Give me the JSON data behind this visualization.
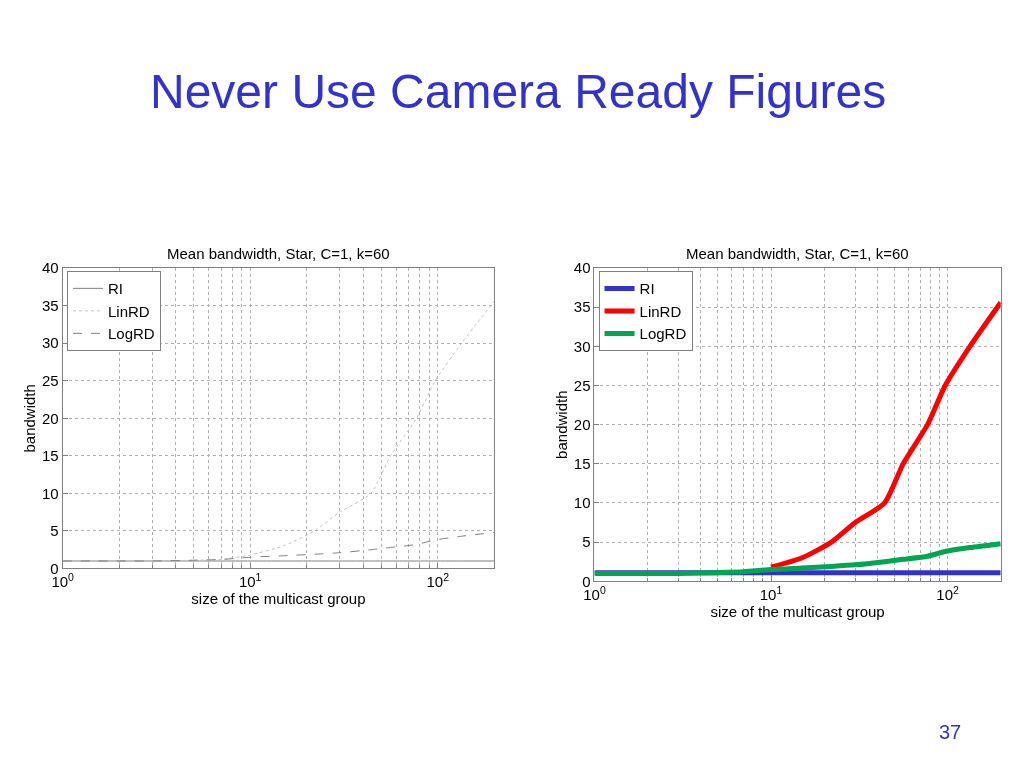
{
  "chart_data": [
    {
      "type": "line",
      "title": "Mean bandwidth, Star, C=1, k=60",
      "xlabel": "size of the multicast group",
      "ylabel": "bandwidth",
      "annotations": [
        "Never Use Camera Ready Figures",
        "37"
      ],
      "x": [
        1,
        2,
        3,
        5,
        7,
        10,
        15,
        22,
        30,
        44,
        56,
        77,
        97,
        134,
        200
      ],
      "series": [
        {
          "name": "RI",
          "color": "#808080",
          "line_style": "solid",
          "values": [
            1,
            1,
            1,
            1,
            1,
            1,
            1,
            1,
            1,
            1,
            1,
            1,
            1,
            1,
            1
          ]
        },
        {
          "name": "LinRD",
          "color": "#c0c0c0",
          "line_style": "dotted",
          "values": [
            1,
            1,
            1,
            1.1,
            1.2,
            1.8,
            3,
            5,
            7.5,
            10,
            15,
            20,
            25,
            30,
            35.6
          ]
        },
        {
          "name": "LogRD",
          "color": "#808080",
          "line_style": "dashed",
          "values": [
            1,
            1,
            1,
            1.1,
            1.2,
            1.5,
            1.7,
            1.9,
            2.1,
            2.5,
            2.8,
            3.2,
            3.8,
            4.3,
            4.8
          ]
        }
      ],
      "log": "x",
      "xlim": [
        1,
        200
      ],
      "xticks": [
        {
          "value": 1,
          "label": "10$^{0}$"
        },
        {
          "value": 10,
          "label": "10$^{1}$"
        },
        {
          "value": 100,
          "label": "10$^{2}$"
        }
      ],
      "ylim": [
        0,
        40
      ],
      "yticks": [
        0,
        5,
        10,
        15,
        20,
        25,
        30,
        35,
        40
      ],
      "grid": true,
      "legend": "top left"
    },
    {
      "type": "line",
      "title": "Mean bandwidth, Star, C=1, k=60",
      "xlabel": "size of the multicast group",
      "ylabel": "bandwidth",
      "x": [
        1,
        2,
        3,
        5,
        7,
        10,
        15,
        22,
        30,
        44,
        56,
        77,
        97,
        134,
        200
      ],
      "series": [
        {
          "name": "RI",
          "color": "#3333cc",
          "line_style": "solid",
          "values": [
            1.1,
            1.1,
            1.1,
            1.1,
            1.1,
            1.1,
            1.1,
            1.1,
            1.1,
            1.1,
            1.1,
            1.1,
            1.1,
            1.1,
            1.1
          ]
        },
        {
          "name": "LinRD",
          "color": "#ff0000",
          "line_style": "solid",
          "values": [
            null,
            null,
            null,
            null,
            null,
            1.8,
            3,
            5,
            7.5,
            10,
            15,
            20,
            25,
            30,
            35.6
          ]
        },
        {
          "name": "LogRD",
          "color": "#00a651",
          "line_style": "solid",
          "values": [
            1,
            1,
            1,
            1.1,
            1.2,
            1.5,
            1.7,
            1.9,
            2.1,
            2.5,
            2.8,
            3.2,
            3.8,
            4.3,
            4.8
          ]
        }
      ],
      "log": "x",
      "xlim": [
        1,
        200
      ],
      "xticks": [
        {
          "value": 1,
          "label": "10$^{0}$"
        },
        {
          "value": 10,
          "label": "10$^{1}$"
        },
        {
          "value": 100,
          "label": "10$^{2}$"
        }
      ],
      "ylim": [
        0,
        40
      ],
      "yticks": [
        0,
        5,
        10,
        15,
        20,
        25,
        30,
        35,
        40
      ],
      "grid": true,
      "legend": "top left"
    }
  ]
}
